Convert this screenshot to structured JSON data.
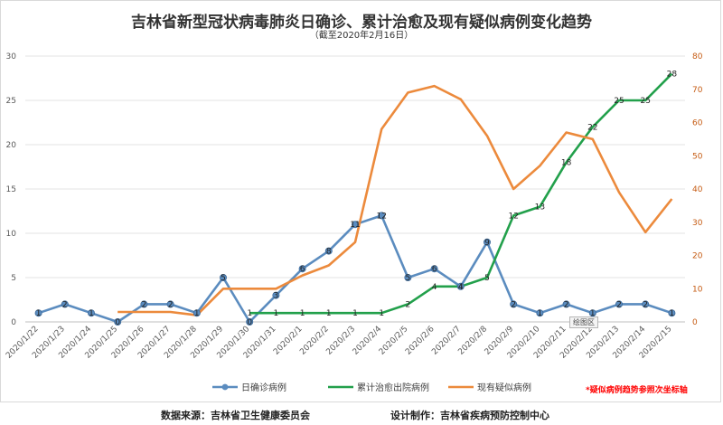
{
  "title": "吉林省新型冠状病毒肺炎日确诊、累计治愈及现有疑似病例变化趋势",
  "subtitle": "（截至2020年2月16日）",
  "note": "*疑似病例趋势参照次坐标轴",
  "footer": {
    "source": "数据来源：吉林省卫生健康委员会",
    "maker": "设计制作：吉林省疾病预防控制中心"
  },
  "tag": "绘图区",
  "chart_data": {
    "type": "line",
    "categories": [
      "2020/1/22",
      "2020/1/23",
      "2020/1/24",
      "2020/1/25",
      "2020/1/26",
      "2020/1/27",
      "2020/1/28",
      "2020/1/29",
      "2020/1/30",
      "2020/1/31",
      "2020/2/1",
      "2020/2/2",
      "2020/2/3",
      "2020/2/4",
      "2020/2/5",
      "2020/2/6",
      "2020/2/7",
      "2020/2/8",
      "2020/2/9",
      "2020/2/10",
      "2020/2/11",
      "2020/2/12",
      "2020/2/13",
      "2020/2/14",
      "2020/2/15"
    ],
    "ylim": [
      0,
      30
    ],
    "yticks": [
      0,
      5,
      10,
      15,
      20,
      25,
      30
    ],
    "y2lim": [
      0,
      80
    ],
    "y2ticks": [
      0,
      10,
      20,
      30,
      40,
      50,
      60,
      70,
      80
    ],
    "grid": true,
    "legend": "bottom",
    "series": [
      {
        "name": "日确诊病例",
        "axis": "left",
        "color": "#5b8cbf",
        "marker": true,
        "labels": true,
        "values": [
          1,
          2,
          1,
          0,
          2,
          2,
          1,
          5,
          0,
          3,
          6,
          8,
          11,
          12,
          5,
          6,
          4,
          9,
          2,
          1,
          2,
          1,
          2,
          2,
          1
        ]
      },
      {
        "name": "累计治愈出院病例",
        "axis": "left",
        "color": "#22a04b",
        "marker": false,
        "labels": true,
        "values": [
          null,
          null,
          null,
          null,
          null,
          null,
          null,
          null,
          1,
          1,
          1,
          1,
          1,
          1,
          2,
          4,
          4,
          5,
          12,
          13,
          18,
          22,
          25,
          25,
          28
        ]
      },
      {
        "name": "现有疑似病例",
        "axis": "right",
        "color": "#ec8a3c",
        "marker": false,
        "labels": false,
        "values": [
          null,
          null,
          null,
          3,
          3,
          3,
          2,
          10,
          10,
          10,
          14,
          17,
          24,
          58,
          69,
          71,
          67,
          56,
          40,
          47,
          57,
          55,
          39,
          27,
          37
        ]
      }
    ]
  }
}
